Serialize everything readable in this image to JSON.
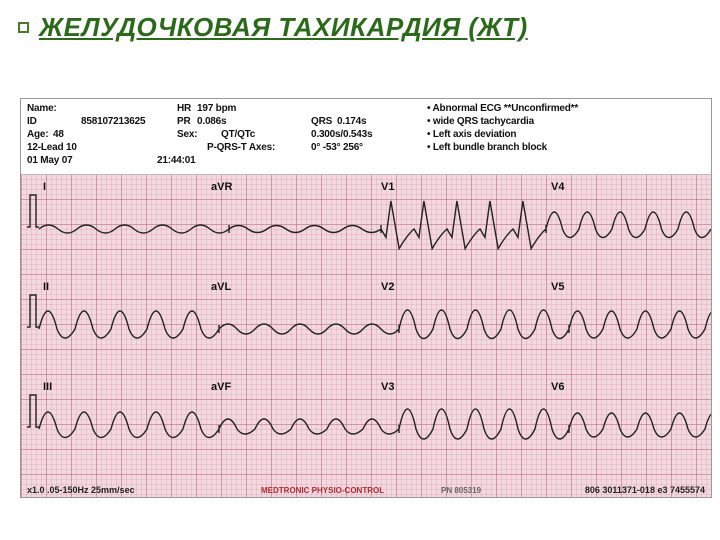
{
  "slide": {
    "title": "ЖЕЛУДОЧКОВАЯ ТАХИКАРДИЯ (ЖТ)",
    "title_color": "#2a6a1a",
    "bullet_color": "#4a7a2a"
  },
  "ecg": {
    "paper_bg": "#f3d9df",
    "grid_minor": "rgba(190,110,130,0.18)",
    "grid_major": "rgba(170,80,100,0.38)",
    "header": {
      "name_label": "Name:",
      "id_label": "ID",
      "id_value": "858107213625",
      "age_label": "Age:",
      "age_value": "48",
      "lead_label": "12-Lead 10",
      "date_label": "01 May 07",
      "hr_label": "HR",
      "hr_value": "197 bpm",
      "pr_label": "PR",
      "pr_value": "0.086s",
      "sex_label": "Sex:",
      "qt_label": "QT/QTc",
      "time_value": "21:44:01",
      "axes_label": "P-QRS-T Axes:",
      "qrs_label": "QRS",
      "qrs_value": "0.174s",
      "qtc_value": "0.300s/0.543s",
      "axes_value": "0°  -53°  256°",
      "interp1": "Abnormal ECG **Unconfirmed**",
      "interp2": "wide QRS tachycardia",
      "interp3": "Left axis deviation",
      "interp4": "Left bundle branch block"
    },
    "leads": {
      "row1": [
        "I",
        "aVR",
        "V1",
        "V4"
      ],
      "row2": [
        "II",
        "aVL",
        "V2",
        "V5"
      ],
      "row3": [
        "III",
        "aVF",
        "V3",
        "V6"
      ]
    },
    "footer": {
      "left": "x1.0  .05-150Hz  25mm/sec",
      "mid": "MEDTRONIC PHYSIO-CONTROL",
      "right": "806 3011371-018 e3 7455574",
      "pn": "PN 805319"
    },
    "waveforms": {
      "row1": {
        "segments": [
          {
            "type": "lowamp",
            "amp": 8,
            "period": 38
          },
          {
            "type": "lowamp",
            "amp": 7,
            "period": 38
          },
          {
            "type": "rs",
            "amp": 28,
            "period": 33
          },
          {
            "type": "mono",
            "amp": 34,
            "period": 33
          }
        ]
      },
      "row2": {
        "segments": [
          {
            "type": "mono",
            "amp": 36,
            "period": 36
          },
          {
            "type": "lowamp",
            "amp": 10,
            "period": 36
          },
          {
            "type": "mono",
            "amp": 38,
            "period": 34
          },
          {
            "type": "mono",
            "amp": 36,
            "period": 34
          }
        ]
      },
      "row3": {
        "segments": [
          {
            "type": "mono",
            "amp": 34,
            "period": 36
          },
          {
            "type": "mono",
            "amp": 20,
            "period": 36
          },
          {
            "type": "mono",
            "amp": 40,
            "period": 34
          },
          {
            "type": "mono",
            "amp": 32,
            "period": 34
          }
        ]
      }
    }
  }
}
